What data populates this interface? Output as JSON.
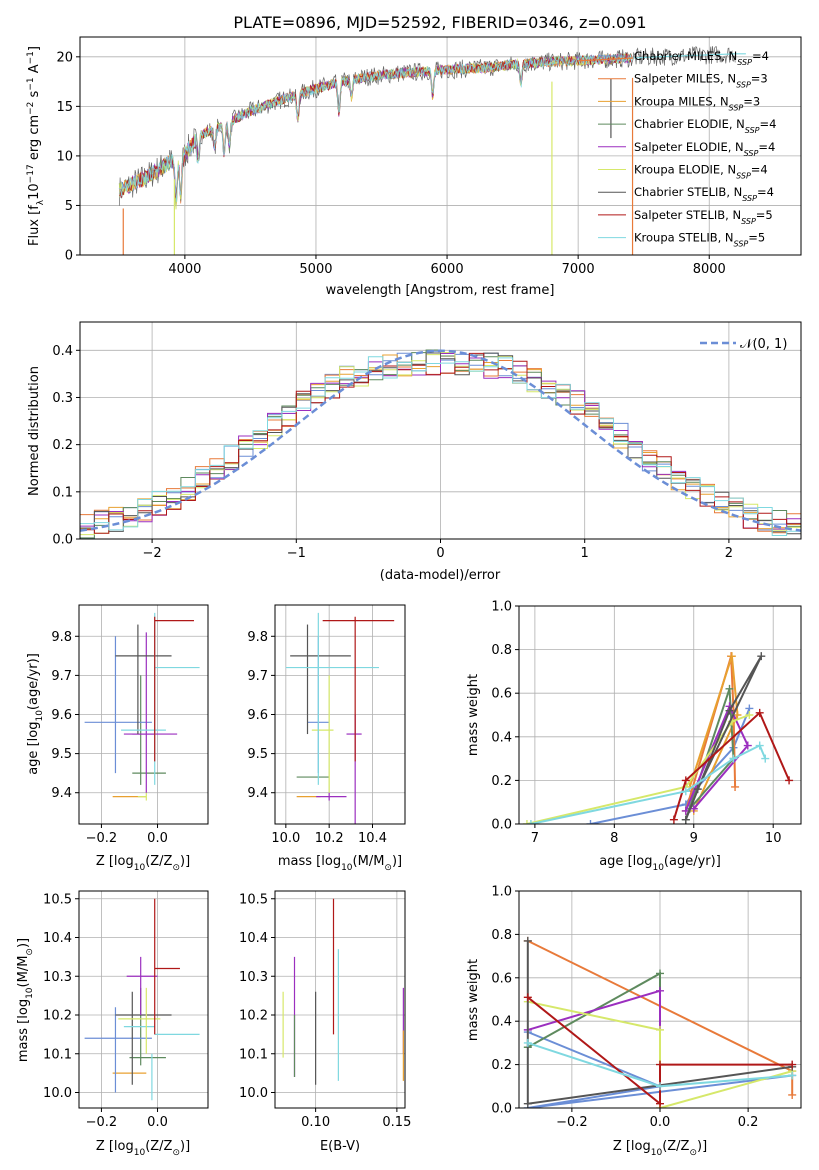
{
  "figure": {
    "title": "PLATE=0896, MJD=52592, FIBERID=0346, z=0.091"
  },
  "models": [
    {
      "label": "Chabrier MILES, N",
      "sub": "SSP",
      "tail": "=4",
      "color": "#6b8ed6"
    },
    {
      "label": "Salpeter MILES, N",
      "sub": "SSP",
      "tail": "=3",
      "color": "#e87a3a"
    },
    {
      "label": "Kroupa MILES, N",
      "sub": "SSP",
      "tail": "=3",
      "color": "#e8a030"
    },
    {
      "label": "Chabrier ELODIE, N",
      "sub": "SSP",
      "tail": "=4",
      "color": "#5e8a5e"
    },
    {
      "label": "Salpeter ELODIE, N",
      "sub": "SSP",
      "tail": "=4",
      "color": "#9b2fbf"
    },
    {
      "label": "Kroupa ELODIE, N",
      "sub": "SSP",
      "tail": "=4",
      "color": "#d6e86a"
    },
    {
      "label": "Chabrier STELIB, N",
      "sub": "SSP",
      "tail": "=4",
      "color": "#555555"
    },
    {
      "label": "Salpeter STELIB, N",
      "sub": "SSP",
      "tail": "=5",
      "color": "#b01818"
    },
    {
      "label": "Kroupa STELIB, N",
      "sub": "SSP",
      "tail": "=5",
      "color": "#7fd8e0"
    }
  ],
  "chart_data": [
    {
      "type": "line",
      "id": "spectrum",
      "title": "PLATE=0896, MJD=52592, FIBERID=0346, z=0.091",
      "xlabel": "wavelength [Angstrom, rest frame]",
      "ylabel_parts": [
        "Flux [f",
        "λ",
        "10",
        "−17",
        " erg cm",
        "−2",
        " s",
        "−1",
        " A",
        "−1",
        "]"
      ],
      "xlim": [
        3200,
        8700
      ],
      "ylim": [
        0,
        22
      ],
      "xticks": [
        4000,
        5000,
        6000,
        7000,
        8000
      ],
      "yticks": [
        0,
        5,
        10,
        15,
        20
      ],
      "continuum": [
        [
          3500,
          6.5
        ],
        [
          3700,
          7.8
        ],
        [
          3900,
          9.5
        ],
        [
          4000,
          10.2
        ],
        [
          4100,
          12
        ],
        [
          4300,
          13.2
        ],
        [
          4500,
          14.5
        ],
        [
          4700,
          15.5
        ],
        [
          4860,
          16.2
        ],
        [
          5000,
          16.8
        ],
        [
          5200,
          17.5
        ],
        [
          5400,
          18
        ],
        [
          5600,
          18.3
        ],
        [
          5800,
          18.5
        ],
        [
          6000,
          18.7
        ],
        [
          6300,
          18.9
        ],
        [
          6560,
          19.3
        ],
        [
          6800,
          19.5
        ],
        [
          7000,
          19.6
        ],
        [
          7300,
          19.8
        ],
        [
          7600,
          20
        ],
        [
          8000,
          20.2
        ],
        [
          8200,
          20.3
        ]
      ],
      "absorption_features": [
        [
          3933,
          4.5
        ],
        [
          3968,
          4
        ],
        [
          4101,
          2.5
        ],
        [
          4227,
          2
        ],
        [
          4300,
          3
        ],
        [
          4340,
          2.5
        ],
        [
          4861,
          2.5
        ],
        [
          5175,
          3
        ],
        [
          5270,
          1.8
        ],
        [
          5890,
          2.5
        ],
        [
          6563,
          2
        ]
      ],
      "spikes": [
        [
          3530,
          0
        ],
        [
          3920,
          0
        ],
        [
          6800,
          0
        ],
        [
          7415,
          0
        ],
        [
          7250,
          11.8
        ]
      ]
    },
    {
      "type": "bar",
      "id": "residuals",
      "xlabel": "(data-model)/error",
      "ylabel": "Normed distribution",
      "xlim": [
        -2.5,
        2.5
      ],
      "ylim": [
        0,
        0.46
      ],
      "xticks": [
        -2,
        -1,
        0,
        1,
        2
      ],
      "yticks": [
        0.0,
        0.1,
        0.2,
        0.3,
        0.4
      ],
      "bin_width": 0.1,
      "reference_label": "𝒩(0, 1)",
      "reference": {
        "mean": 0,
        "sigma": 1
      },
      "legend": "top-right"
    },
    {
      "type": "scatter",
      "id": "age-vs-Z",
      "xlabel_parts": [
        "Z [log",
        "10",
        "(Z/Z",
        "⊙",
        ")]"
      ],
      "ylabel_parts": [
        "age  [log",
        "10",
        "(age/yr)]"
      ],
      "xlim": [
        -0.28,
        0.18
      ],
      "ylim": [
        9.32,
        9.88
      ],
      "xticks": [
        -0.2,
        0.0
      ],
      "yticks": [
        9.4,
        9.5,
        9.6,
        9.7,
        9.8
      ],
      "points": [
        {
          "x": -0.12,
          "xlo": -0.16,
          "xhi": -0.04,
          "y": 9.39,
          "ylo": 9.39,
          "yhi": 9.39,
          "model": 2
        },
        {
          "x": -0.06,
          "xlo": -0.09,
          "xhi": 0.03,
          "y": 9.45,
          "ylo": 9.42,
          "yhi": 9.7,
          "model": 3
        },
        {
          "x": -0.04,
          "xlo": -0.07,
          "xhi": -0.04,
          "y": 9.39,
          "ylo": 9.38,
          "yhi": 9.4,
          "model": 5
        },
        {
          "x": -0.15,
          "xlo": -0.26,
          "xhi": -0.02,
          "y": 9.58,
          "ylo": 9.45,
          "yhi": 9.8,
          "model": 0
        },
        {
          "x": -0.04,
          "xlo": -0.12,
          "xhi": -0.01,
          "y": 9.55,
          "ylo": 9.4,
          "yhi": 9.81,
          "model": 4
        },
        {
          "x": -0.07,
          "xlo": -0.09,
          "xhi": 0.07,
          "y": 9.55,
          "ylo": 9.55,
          "yhi": 9.55,
          "model": 4
        },
        {
          "x": -0.07,
          "xlo": -0.15,
          "xhi": 0.05,
          "y": 9.75,
          "ylo": 9.55,
          "yhi": 9.83,
          "model": 6
        },
        {
          "x": -0.04,
          "xlo": -0.13,
          "xhi": 0.03,
          "y": 9.56,
          "ylo": 9.56,
          "yhi": 9.56,
          "model": 8
        },
        {
          "x": -0.01,
          "xlo": -0.01,
          "xhi": 0.15,
          "y": 9.72,
          "ylo": 9.42,
          "yhi": 9.86,
          "model": 8
        },
        {
          "x": -0.01,
          "xlo": -0.01,
          "xhi": 0.13,
          "y": 9.84,
          "ylo": 9.48,
          "yhi": 9.85,
          "model": 7
        }
      ]
    },
    {
      "type": "scatter",
      "id": "age-vs-mass",
      "xlabel_parts": [
        "mass [log",
        "10",
        "(M/M",
        "⊙",
        ")]"
      ],
      "ylabel_parts": [],
      "xlim": [
        9.95,
        10.55
      ],
      "ylim": [
        9.32,
        9.88
      ],
      "xticks": [
        10.0,
        10.2,
        10.4
      ],
      "yticks": [
        9.4,
        9.5,
        9.6,
        9.7,
        9.8
      ],
      "points": [
        {
          "x": 10.05,
          "xlo": 10.05,
          "xhi": 10.16,
          "y": 9.39,
          "ylo": 9.39,
          "yhi": 9.39,
          "model": 2
        },
        {
          "x": 10.1,
          "xlo": 10.05,
          "xhi": 10.2,
          "y": 9.44,
          "ylo": 9.44,
          "yhi": 9.44,
          "model": 3
        },
        {
          "x": 10.15,
          "xlo": 10.1,
          "xhi": 10.2,
          "y": 9.58,
          "ylo": 9.45,
          "yhi": 9.8,
          "model": 0
        },
        {
          "x": 10.2,
          "xlo": 10.14,
          "xhi": 10.28,
          "y": 9.39,
          "ylo": 9.38,
          "yhi": 9.4,
          "model": 4
        },
        {
          "x": 10.2,
          "xlo": 10.12,
          "xhi": 10.22,
          "y": 9.56,
          "ylo": 9.4,
          "yhi": 9.7,
          "model": 5
        },
        {
          "x": 10.1,
          "xlo": 10.02,
          "xhi": 10.3,
          "y": 9.75,
          "ylo": 9.55,
          "yhi": 9.83,
          "model": 6
        },
        {
          "x": 10.15,
          "xlo": 10.0,
          "xhi": 10.43,
          "y": 9.72,
          "ylo": 9.42,
          "yhi": 9.86,
          "model": 8
        },
        {
          "x": 10.32,
          "xlo": 10.28,
          "xhi": 10.35,
          "y": 9.55,
          "ylo": 9.3,
          "yhi": 9.6,
          "model": 4
        },
        {
          "x": 10.32,
          "xlo": 10.17,
          "xhi": 10.5,
          "y": 9.84,
          "ylo": 9.48,
          "yhi": 9.85,
          "model": 7
        }
      ]
    },
    {
      "type": "line",
      "id": "mass-weight-vs-age",
      "xlabel_parts": [
        "age  [log",
        "10",
        "(age/yr)]"
      ],
      "ylabel": "mass weight",
      "xlim": [
        6.8,
        10.35
      ],
      "ylim": [
        0,
        1
      ],
      "xticks": [
        7,
        8,
        9,
        10
      ],
      "yticks": [
        0.0,
        0.2,
        0.4,
        0.6,
        0.8,
        1.0
      ],
      "series": [
        {
          "model": 0,
          "points": [
            [
              7.7,
              0.0
            ],
            [
              8.9,
              0.09
            ],
            [
              9.0,
              0.15
            ],
            [
              9.5,
              0.35
            ],
            [
              9.7,
              0.53
            ]
          ]
        },
        {
          "model": 1,
          "points": [
            [
              8.9,
              0.06
            ],
            [
              9.47,
              0.77
            ],
            [
              9.5,
              0.52
            ],
            [
              9.52,
              0.17
            ]
          ]
        },
        {
          "model": 2,
          "points": [
            [
              8.95,
              0.17
            ],
            [
              9.48,
              0.77
            ],
            [
              9.55,
              0.5
            ],
            [
              9.0,
              0.06
            ]
          ]
        },
        {
          "model": 3,
          "points": [
            [
              8.9,
              0.02
            ],
            [
              9.45,
              0.62
            ],
            [
              9.5,
              0.3
            ],
            [
              8.95,
              0.07
            ]
          ]
        },
        {
          "model": 4,
          "points": [
            [
              8.9,
              0.06
            ],
            [
              9.45,
              0.54
            ],
            [
              9.68,
              0.36
            ],
            [
              9.0,
              0.07
            ]
          ]
        },
        {
          "model": 5,
          "points": [
            [
              6.9,
              0.0
            ],
            [
              8.9,
              0.17
            ],
            [
              9.48,
              0.47
            ],
            [
              9.7,
              0.5
            ]
          ]
        },
        {
          "model": 6,
          "points": [
            [
              8.9,
              0.02
            ],
            [
              9.45,
              0.52
            ],
            [
              9.85,
              0.77
            ],
            [
              9.05,
              0.16
            ]
          ]
        },
        {
          "model": 7,
          "points": [
            [
              8.75,
              0.02
            ],
            [
              8.9,
              0.2
            ],
            [
              9.83,
              0.51
            ],
            [
              10.2,
              0.2
            ]
          ]
        },
        {
          "model": 8,
          "points": [
            [
              6.95,
              0.0
            ],
            [
              8.9,
              0.15
            ],
            [
              9.5,
              0.3
            ],
            [
              9.83,
              0.36
            ],
            [
              9.9,
              0.3
            ]
          ]
        }
      ]
    },
    {
      "type": "scatter",
      "id": "mass-vs-Z",
      "xlabel_parts": [
        "Z [log",
        "10",
        "(Z/Z",
        "⊙",
        ")]"
      ],
      "ylabel_parts": [
        "mass [log",
        "10",
        "(M/M",
        "⊙",
        ")]"
      ],
      "xlim": [
        -0.28,
        0.18
      ],
      "ylim": [
        9.96,
        10.52
      ],
      "xticks": [
        -0.2,
        0.0
      ],
      "yticks": [
        10.0,
        10.1,
        10.2,
        10.3,
        10.4,
        10.5
      ],
      "points": [
        {
          "x": -0.12,
          "xlo": -0.16,
          "xhi": -0.04,
          "y": 10.05,
          "ylo": 10.05,
          "yhi": 10.05,
          "model": 2
        },
        {
          "x": -0.06,
          "xlo": -0.1,
          "xhi": 0.03,
          "y": 10.09,
          "ylo": 10.07,
          "yhi": 10.27,
          "model": 3
        },
        {
          "x": -0.15,
          "xlo": -0.26,
          "xhi": -0.02,
          "y": 10.14,
          "ylo": 10.0,
          "yhi": 10.22,
          "model": 0
        },
        {
          "x": -0.09,
          "xlo": -0.09,
          "xhi": -0.09,
          "y": 10.12,
          "ylo": 10.02,
          "yhi": 10.26,
          "model": 6
        },
        {
          "x": -0.07,
          "xlo": -0.15,
          "xhi": 0.05,
          "y": 10.2,
          "ylo": 10.2,
          "yhi": 10.2,
          "model": 6
        },
        {
          "x": -0.05,
          "xlo": -0.12,
          "xhi": -0.01,
          "y": 10.17,
          "ylo": 10.17,
          "yhi": 10.17,
          "model": 8
        },
        {
          "x": -0.04,
          "xlo": -0.14,
          "xhi": 0.01,
          "y": 10.19,
          "ylo": 10.19,
          "yhi": 10.19,
          "model": 5
        },
        {
          "x": -0.04,
          "xlo": -0.04,
          "xhi": -0.04,
          "y": 10.19,
          "ylo": 10.1,
          "yhi": 10.27,
          "model": 5
        },
        {
          "x": -0.06,
          "xlo": -0.11,
          "xhi": 0.0,
          "y": 10.3,
          "ylo": 10.2,
          "yhi": 10.35,
          "model": 4
        },
        {
          "x": -0.02,
          "xlo": -0.02,
          "xhi": -0.02,
          "y": 10.0,
          "ylo": 9.98,
          "yhi": 10.1,
          "model": 8
        },
        {
          "x": -0.01,
          "xlo": -0.01,
          "xhi": 0.15,
          "y": 10.15,
          "ylo": 10.15,
          "yhi": 10.15,
          "model": 8
        },
        {
          "x": -0.01,
          "xlo": -0.01,
          "xhi": 0.08,
          "y": 10.32,
          "ylo": 10.15,
          "yhi": 10.5,
          "model": 7
        }
      ]
    },
    {
      "type": "scatter",
      "id": "mass-vs-EBV",
      "xlabel": "E(B-V)",
      "ylabel_parts": [],
      "xlim": [
        0.075,
        0.155
      ],
      "ylim": [
        9.96,
        10.52
      ],
      "xticks": [
        0.05,
        0.1,
        0.15
      ],
      "yticks": [
        10.0,
        10.1,
        10.2,
        10.3,
        10.4,
        10.5
      ],
      "points": [
        {
          "x": 0.08,
          "y": 10.18,
          "ylo": 10.09,
          "yhi": 10.26,
          "model": 5
        },
        {
          "x": 0.087,
          "y": 10.2,
          "ylo": 10.04,
          "yhi": 10.35,
          "model": 4
        },
        {
          "x": 0.087,
          "y": 10.1,
          "ylo": 10.04,
          "yhi": 10.2,
          "model": 3
        },
        {
          "x": 0.1,
          "y": 10.14,
          "ylo": 10.02,
          "yhi": 10.26,
          "model": 6
        },
        {
          "x": 0.111,
          "y": 10.32,
          "ylo": 10.15,
          "yhi": 10.5,
          "model": 7
        },
        {
          "x": 0.114,
          "y": 10.2,
          "ylo": 10.03,
          "yhi": 10.37,
          "model": 8
        },
        {
          "x": 0.154,
          "y": 10.2,
          "ylo": 10.1,
          "yhi": 10.27,
          "model": 4
        },
        {
          "x": 0.154,
          "y": 10.1,
          "ylo": 10.03,
          "yhi": 10.16,
          "model": 2
        }
      ]
    },
    {
      "type": "line",
      "id": "mass-weight-vs-Z",
      "xlabel_parts": [
        "Z [log",
        "10",
        "(Z/Z",
        "⊙",
        ")]"
      ],
      "ylabel": "mass weight",
      "xlim": [
        -0.32,
        0.32
      ],
      "ylim": [
        0,
        1
      ],
      "xticks": [
        -0.2,
        0.0,
        0.2
      ],
      "yticks": [
        0.0,
        0.2,
        0.4,
        0.6,
        0.8,
        1.0
      ],
      "series": [
        {
          "model": 0,
          "points": [
            [
              -0.3,
              0.35
            ],
            [
              0.0,
              0.1
            ],
            [
              -0.3,
              0.0
            ],
            [
              0.3,
              0.15
            ]
          ]
        },
        {
          "model": 1,
          "points": [
            [
              -0.3,
              0.77
            ],
            [
              0.3,
              0.17
            ],
            [
              0.3,
              0.06
            ]
          ]
        },
        {
          "model": 3,
          "points": [
            [
              -0.3,
              0.28
            ],
            [
              0.0,
              0.62
            ],
            [
              0.0,
              0.1
            ]
          ]
        },
        {
          "model": 4,
          "points": [
            [
              -0.3,
              0.36
            ],
            [
              0.0,
              0.54
            ],
            [
              0.0,
              0.1
            ]
          ]
        },
        {
          "model": 5,
          "points": [
            [
              -0.3,
              0.49
            ],
            [
              0.0,
              0.36
            ],
            [
              0.0,
              0.0
            ],
            [
              0.3,
              0.17
            ]
          ]
        },
        {
          "model": 6,
          "points": [
            [
              -0.3,
              0.77
            ],
            [
              -0.3,
              0.02
            ],
            [
              0.3,
              0.19
            ]
          ]
        },
        {
          "model": 7,
          "points": [
            [
              -0.3,
              0.51
            ],
            [
              0.0,
              0.02
            ],
            [
              0.0,
              0.2
            ],
            [
              0.3,
              0.2
            ]
          ]
        },
        {
          "model": 8,
          "points": [
            [
              -0.3,
              0.3
            ],
            [
              0.0,
              0.1
            ],
            [
              0.3,
              0.15
            ]
          ]
        }
      ]
    }
  ]
}
